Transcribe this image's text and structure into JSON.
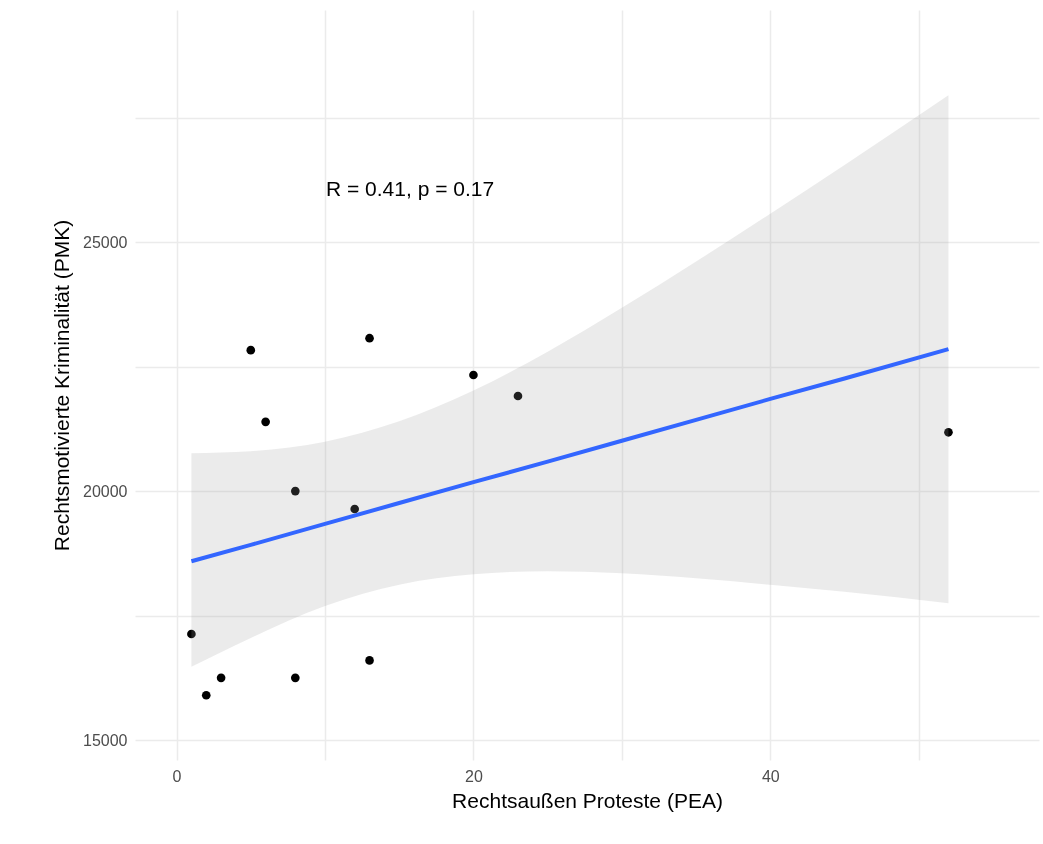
{
  "chart_data": {
    "type": "scatter",
    "xlabel": "Rechtsaußen Proteste (PEA)",
    "ylabel": "Rechtsmotivierte Kriminalität (PMK)",
    "xlim": [
      -2.8,
      58.1
    ],
    "ylim": [
      14600,
      29660
    ],
    "xticks": [
      0,
      {
        "value": 10,
        "label": null
      },
      20,
      {
        "value": 30,
        "label": null
      },
      40,
      {
        "value": 50,
        "label": null
      }
    ],
    "yticks": [
      15000,
      {
        "value": 17500,
        "label": null
      },
      20000,
      {
        "value": 22500,
        "label": null
      },
      25000,
      {
        "value": 27500,
        "label": null
      }
    ],
    "grid": true,
    "marker": "circle",
    "annotations": [
      "R = 0.41, p = 0.17"
    ],
    "series": [
      {
        "color": "#000000",
        "x": [
          1,
          2,
          3,
          5,
          6,
          8,
          8,
          12,
          13,
          13,
          20,
          23,
          52
        ],
        "values": [
          17130,
          15900,
          16250,
          22830,
          21390,
          20000,
          16250,
          19640,
          23070,
          16600,
          22330,
          21910,
          21180
        ]
      },
      {
        "type": "line",
        "color": "#3366ff",
        "marker": "none",
        "x": [
          1,
          5,
          10,
          15,
          20,
          25,
          30,
          35,
          40,
          45,
          52
        ],
        "values": [
          18590,
          18920,
          19340,
          19760,
          20180,
          20590,
          21010,
          21430,
          21850,
          22260,
          22850
        ],
        "lower": [
          16470,
          17050,
          17690,
          18120,
          18330,
          18390,
          18350,
          18250,
          18120,
          17980,
          17750
        ],
        "upper": [
          20760,
          20800,
          20990,
          21400,
          22020,
          22800,
          23680,
          24610,
          25570,
          26550,
          27950
        ]
      }
    ]
  }
}
